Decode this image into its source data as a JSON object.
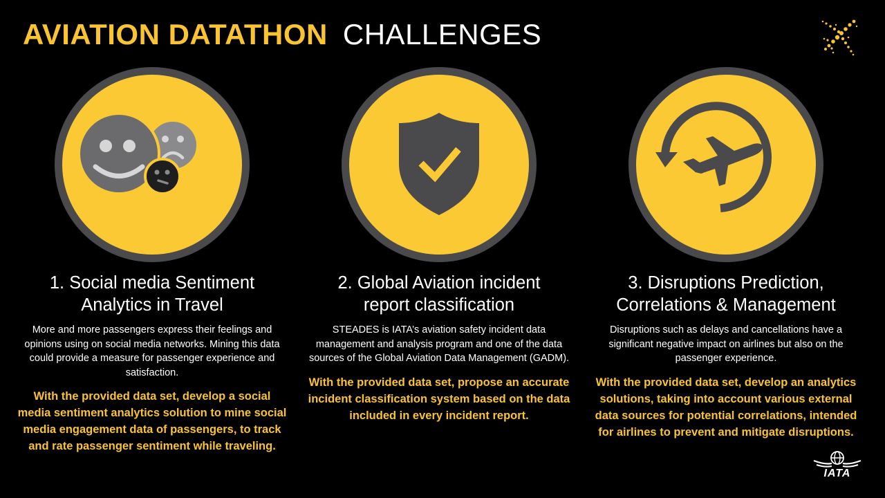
{
  "header": {
    "title_primary": "AVIATION DATATHON",
    "title_secondary": "CHALLENGES"
  },
  "colors": {
    "accent": "#f9c332",
    "circle_fill": "#fbc933",
    "circle_ring": "#4a4a4c",
    "background": "#000000"
  },
  "challenges": [
    {
      "icon": "sentiment-faces-icon",
      "heading_line1": "1. Social media Sentiment",
      "heading_line2": "Analytics in Travel",
      "description": "More and more passengers express their feelings and opinions using on social media networks. Mining this data could provide a measure for passenger experience and satisfaction.",
      "call_to_action": "With the provided data set, develop a social media sentiment analytics solution to mine social media engagement data of passengers, to track and rate passenger sentiment while traveling."
    },
    {
      "icon": "shield-check-icon",
      "heading_line1": "2. Global Aviation incident",
      "heading_line2": "report classification",
      "description": "STEADES is IATA’s aviation safety incident data management and analysis program and one of the data sources of the Global Aviation Data Management (GADM).",
      "call_to_action": "With the provided data set, propose an accurate incident classification system based on the data included in every incident report."
    },
    {
      "icon": "plane-disruption-icon",
      "heading_line1": "3. Disruptions Prediction,",
      "heading_line2": "Correlations & Management",
      "description": "Disruptions such as delays and cancellations have a significant negative impact on airlines but also on the passenger experience.",
      "call_to_action": "With the provided data set, develop an analytics solutions, taking into account various external data sources for potential correlations, intended for airlines to prevent and mitigate disruptions."
    }
  ],
  "footer": {
    "logo_text": "IATA"
  }
}
